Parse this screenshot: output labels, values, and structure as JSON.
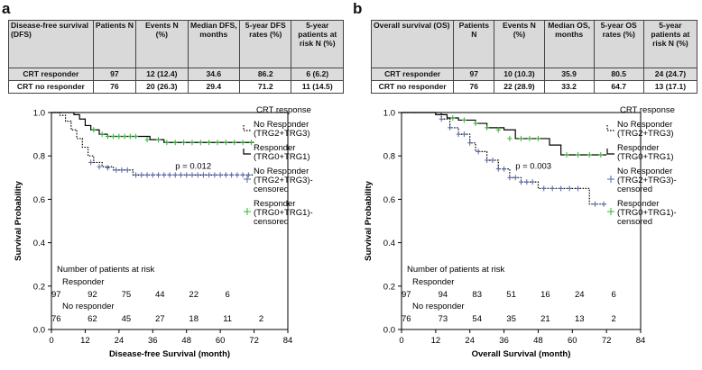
{
  "chart_data": [
    {
      "panel": "a",
      "type": "line",
      "table": {
        "headers": [
          "Disease-free survival (DFS)",
          "Patients N",
          "Events N (%)",
          "Median DFS, months",
          "5-year DFS rates (%)",
          "5-year patients at risk N (%)"
        ],
        "rows": [
          [
            "CRT responder",
            "97",
            "12 (12.4)",
            "34.6",
            "86.2",
            "6 (6.2)"
          ],
          [
            "CRT no responder",
            "76",
            "20 (26.3)",
            "29.4",
            "71.2",
            "11 (14.5)"
          ]
        ]
      },
      "xlabel": "Disease-free Survival (month)",
      "ylabel": "Survival Probability",
      "xlim": [
        0,
        84
      ],
      "ylim": [
        0,
        1
      ],
      "xticks": [
        0,
        12,
        24,
        36,
        48,
        60,
        72,
        84
      ],
      "yticks": [
        0.0,
        0.2,
        0.4,
        0.6,
        0.8,
        1.0
      ],
      "ytick_labels": [
        "0.0",
        "0.2",
        "0.4",
        "0.6",
        "0.8",
        "1.0"
      ],
      "pvalue": "p = 0.012",
      "legend_title": "CRT response",
      "legend": [
        "No Responder (TRG2+TRG3)",
        "Responder (TRG0+TRG1)",
        "No Responder (TRG2+TRG3)-censored",
        "Responder (TRG0+TRG1)-censored"
      ],
      "series": [
        {
          "name": "Responder (TRG0+TRG1)",
          "color": "#000000",
          "style": "solid",
          "x": [
            0,
            4,
            8,
            10,
            12,
            14,
            17,
            20,
            35,
            40,
            72
          ],
          "y": [
            1.0,
            1.0,
            0.99,
            0.97,
            0.94,
            0.92,
            0.9,
            0.89,
            0.875,
            0.862,
            0.862
          ]
        },
        {
          "name": "No Responder (TRG2+TRG3)",
          "color": "#000000",
          "style": "dotted",
          "x": [
            0,
            3,
            5,
            7,
            9,
            11,
            13,
            15,
            18,
            22,
            29,
            72
          ],
          "y": [
            1.0,
            0.987,
            0.96,
            0.92,
            0.88,
            0.84,
            0.8,
            0.77,
            0.75,
            0.735,
            0.712,
            0.712
          ]
        }
      ],
      "censored": [
        {
          "name": "Responder (TRG0+TRG1)-censored",
          "color": "#2eb82e",
          "x": [
            15,
            18,
            20,
            22,
            24,
            26,
            28,
            30,
            34,
            38,
            41,
            44,
            47,
            50,
            53,
            56,
            59,
            62,
            65,
            68,
            71
          ],
          "y": [
            0.92,
            0.9,
            0.89,
            0.89,
            0.89,
            0.89,
            0.89,
            0.89,
            0.875,
            0.875,
            0.862,
            0.862,
            0.862,
            0.862,
            0.862,
            0.862,
            0.862,
            0.862,
            0.862,
            0.862,
            0.862
          ]
        },
        {
          "name": "No Responder (TRG2+TRG3)-censored",
          "color": "#5566aa",
          "x": [
            14,
            17,
            20,
            23,
            25,
            27,
            30,
            32,
            34,
            36,
            38,
            40,
            42,
            44,
            46,
            48,
            50,
            52,
            54,
            56,
            58,
            60,
            62,
            64,
            66,
            68,
            70
          ],
          "y": [
            0.77,
            0.75,
            0.745,
            0.735,
            0.735,
            0.735,
            0.712,
            0.712,
            0.712,
            0.712,
            0.712,
            0.712,
            0.712,
            0.712,
            0.712,
            0.712,
            0.712,
            0.712,
            0.712,
            0.712,
            0.712,
            0.712,
            0.712,
            0.712,
            0.712,
            0.712,
            0.712
          ]
        }
      ],
      "at_risk": {
        "title": "Number of patients at risk",
        "groups": [
          {
            "label": "Responder",
            "values": [
              "97",
              "92",
              "75",
              "44",
              "22",
              "6"
            ],
            "x": [
              0,
              12,
              24,
              36,
              48,
              60
            ]
          },
          {
            "label": "No responder",
            "values": [
              "76",
              "62",
              "45",
              "27",
              "18",
              "11",
              "2"
            ],
            "x": [
              0,
              12,
              24,
              36,
              48,
              60,
              72
            ]
          }
        ]
      }
    },
    {
      "panel": "b",
      "type": "line",
      "table": {
        "headers": [
          "Overall survival (OS)",
          "Patients N",
          "Events N (%)",
          "Median OS, months",
          "5-year OS rates (%)",
          "5-year patients at risk N (%)"
        ],
        "rows": [
          [
            "CRT responder",
            "97",
            "10 (10.3)",
            "35.9",
            "80.5",
            "24 (24.7)"
          ],
          [
            "CRT no responder",
            "76",
            "22 (28.9)",
            "33.2",
            "64.7",
            "13 (17.1)"
          ]
        ]
      },
      "xlabel": "Overall Survival (month)",
      "ylabel": "Survival Probability",
      "xlim": [
        0,
        84
      ],
      "ylim": [
        0,
        1
      ],
      "xticks": [
        0,
        12,
        24,
        36,
        48,
        60,
        72,
        84
      ],
      "yticks": [
        0.0,
        0.2,
        0.4,
        0.6,
        0.8,
        1.0
      ],
      "ytick_labels": [
        "0.0",
        "0.2",
        "0.4",
        "0.6",
        "0.8",
        "1.0"
      ],
      "pvalue": "p = 0.003",
      "legend_title": "CRT response",
      "legend": [
        "No Responder (TRG2+TRG3)",
        "Responder (TRG0+TRG1)",
        "No Responder (TRG2+TRG3)-censored",
        "Responder (TRG0+TRG1)-censored"
      ],
      "series": [
        {
          "name": "Responder (TRG0+TRG1)",
          "color": "#000000",
          "style": "solid",
          "x": [
            0,
            8,
            12,
            16,
            20,
            26,
            30,
            36,
            40,
            48,
            52,
            56,
            72
          ],
          "y": [
            1.0,
            1.0,
            0.99,
            0.975,
            0.965,
            0.95,
            0.93,
            0.92,
            0.88,
            0.88,
            0.85,
            0.805,
            0.805
          ]
        },
        {
          "name": "No Responder (TRG2+TRG3)",
          "color": "#000000",
          "style": "dotted",
          "x": [
            0,
            10,
            14,
            17,
            20,
            24,
            26,
            30,
            34,
            38,
            42,
            48,
            66,
            72
          ],
          "y": [
            1.0,
            1.0,
            0.97,
            0.93,
            0.9,
            0.86,
            0.82,
            0.78,
            0.74,
            0.7,
            0.68,
            0.65,
            0.578,
            0.578
          ]
        }
      ],
      "censored": [
        {
          "name": "Responder (TRG0+TRG1)-censored",
          "color": "#2eb82e",
          "x": [
            18,
            22,
            26,
            30,
            34,
            38,
            42,
            45,
            48,
            58,
            62,
            66,
            70
          ],
          "y": [
            0.975,
            0.965,
            0.95,
            0.93,
            0.92,
            0.88,
            0.88,
            0.88,
            0.88,
            0.805,
            0.805,
            0.805,
            0.805
          ]
        },
        {
          "name": "No Responder (TRG2+TRG3)-censored",
          "color": "#5566aa",
          "x": [
            14,
            17,
            20,
            22,
            24,
            27,
            30,
            32,
            34,
            36,
            38,
            40,
            42,
            44,
            46,
            50,
            53,
            56,
            59,
            62,
            68,
            71
          ],
          "y": [
            0.97,
            0.93,
            0.9,
            0.9,
            0.86,
            0.82,
            0.78,
            0.78,
            0.74,
            0.74,
            0.7,
            0.7,
            0.68,
            0.68,
            0.68,
            0.65,
            0.65,
            0.65,
            0.65,
            0.65,
            0.578,
            0.578
          ]
        }
      ],
      "at_risk": {
        "title": "Number of patients at risk",
        "groups": [
          {
            "label": "Responder",
            "values": [
              "97",
              "94",
              "83",
              "51",
              "16",
              "24",
              "6"
            ],
            "x": [
              0,
              12,
              24,
              36,
              48,
              60,
              72
            ]
          },
          {
            "label": "No responder",
            "values": [
              "76",
              "73",
              "54",
              "35",
              "21",
              "13",
              "2"
            ],
            "x": [
              0,
              12,
              24,
              36,
              48,
              60,
              72
            ]
          }
        ]
      }
    }
  ],
  "panels": [
    {
      "letter": "a"
    },
    {
      "letter": "b"
    }
  ],
  "colors": {
    "table_header": "#d9d9d9",
    "green_censor": "#2eb82e",
    "blue_censor": "#5566aa"
  }
}
